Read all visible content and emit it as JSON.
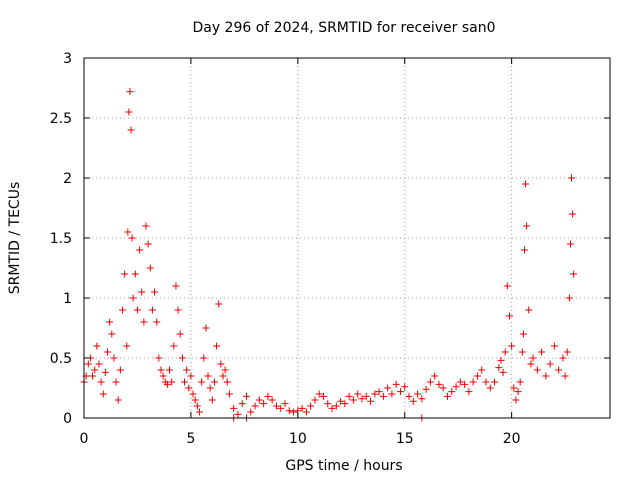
{
  "chart_data": {
    "type": "scatter",
    "title": "Day 296 of 2024, SRMTID for receiver san0",
    "xlabel": "GPS time / hours",
    "ylabel": "SRMTID / TECUs",
    "xlim": [
      0,
      24.6
    ],
    "ylim": [
      0,
      3
    ],
    "x_ticks": [
      0,
      5,
      10,
      15,
      20
    ],
    "x_tick_labels": [
      "0",
      "5",
      "10",
      "15",
      "20"
    ],
    "y_ticks": [
      0,
      0.5,
      1,
      1.5,
      2,
      2.5,
      3
    ],
    "y_tick_labels": [
      "0",
      "0.5",
      "1",
      "1.5",
      "2",
      "2.5",
      "3"
    ],
    "grid": true,
    "marker": "plus",
    "colors": {
      "points": "#ee0000",
      "grid": "#a0a0a0",
      "axis": "#000000"
    },
    "series": [
      {
        "name": "SRMTID",
        "x": [
          0.0,
          0.1,
          0.2,
          0.3,
          0.4,
          0.5,
          0.6,
          0.7,
          0.8,
          0.9,
          1.0,
          1.1,
          1.2,
          1.3,
          1.4,
          1.5,
          1.6,
          1.7,
          1.8,
          1.9,
          2.0,
          2.05,
          2.1,
          2.15,
          2.2,
          2.25,
          2.3,
          2.4,
          2.5,
          2.6,
          2.7,
          2.8,
          2.9,
          3.0,
          3.1,
          3.2,
          3.3,
          3.4,
          3.5,
          3.6,
          3.7,
          3.8,
          3.9,
          4.0,
          4.1,
          4.2,
          4.3,
          4.4,
          4.5,
          4.6,
          4.7,
          4.8,
          4.9,
          5.0,
          5.1,
          5.2,
          5.3,
          5.4,
          5.5,
          5.6,
          5.7,
          5.8,
          5.9,
          6.0,
          6.1,
          6.2,
          6.3,
          6.4,
          6.5,
          6.6,
          6.7,
          6.8,
          7.0,
          7.2,
          7.4,
          7.6,
          7.8,
          8.0,
          8.2,
          8.4,
          8.6,
          8.8,
          9.0,
          9.2,
          9.4,
          9.6,
          9.8,
          10.0,
          10.2,
          10.4,
          10.6,
          10.8,
          11.0,
          11.2,
          11.4,
          11.6,
          11.8,
          12.0,
          12.2,
          12.4,
          12.6,
          12.8,
          13.0,
          13.2,
          13.4,
          13.6,
          13.8,
          14.0,
          14.2,
          14.4,
          14.6,
          14.8,
          15.0,
          15.2,
          15.4,
          15.6,
          15.8,
          16.0,
          16.2,
          16.4,
          16.6,
          16.8,
          17.0,
          17.2,
          17.4,
          17.6,
          17.8,
          18.0,
          18.2,
          18.4,
          18.6,
          18.8,
          19.0,
          19.2,
          19.4,
          19.5,
          19.6,
          19.7,
          19.8,
          19.9,
          20.0,
          20.1,
          20.2,
          20.3,
          20.4,
          20.5,
          20.55,
          20.6,
          20.65,
          20.7,
          20.8,
          20.9,
          21.0,
          21.2,
          21.4,
          21.6,
          21.8,
          22.0,
          22.2,
          22.4,
          22.5,
          22.6,
          22.7,
          22.75,
          22.8,
          22.85,
          22.9,
          7.0,
          7.6,
          15.8
        ],
        "y": [
          0.3,
          0.35,
          0.45,
          0.5,
          0.35,
          0.4,
          0.6,
          0.45,
          0.3,
          0.2,
          0.38,
          0.55,
          0.8,
          0.7,
          0.5,
          0.3,
          0.15,
          0.4,
          0.9,
          1.2,
          0.6,
          1.55,
          2.55,
          2.72,
          2.4,
          1.5,
          1.0,
          1.2,
          0.9,
          1.4,
          1.05,
          0.8,
          1.6,
          1.45,
          1.25,
          0.9,
          1.05,
          0.8,
          0.5,
          0.4,
          0.35,
          0.3,
          0.28,
          0.4,
          0.3,
          0.6,
          1.1,
          0.9,
          0.7,
          0.5,
          0.3,
          0.4,
          0.25,
          0.35,
          0.2,
          0.15,
          0.1,
          0.05,
          0.3,
          0.5,
          0.75,
          0.35,
          0.25,
          0.15,
          0.3,
          0.6,
          0.95,
          0.45,
          0.35,
          0.4,
          0.3,
          0.2,
          0.08,
          0.03,
          0.12,
          0.18,
          0.05,
          0.1,
          0.15,
          0.12,
          0.18,
          0.15,
          0.1,
          0.08,
          0.12,
          0.06,
          0.05,
          0.06,
          0.08,
          0.05,
          0.1,
          0.15,
          0.2,
          0.18,
          0.12,
          0.08,
          0.1,
          0.14,
          0.12,
          0.18,
          0.15,
          0.2,
          0.16,
          0.18,
          0.14,
          0.2,
          0.22,
          0.18,
          0.25,
          0.2,
          0.28,
          0.22,
          0.26,
          0.18,
          0.14,
          0.2,
          0.16,
          0.24,
          0.3,
          0.35,
          0.28,
          0.25,
          0.18,
          0.22,
          0.26,
          0.3,
          0.28,
          0.22,
          0.3,
          0.35,
          0.4,
          0.3,
          0.25,
          0.3,
          0.42,
          0.48,
          0.38,
          0.55,
          1.1,
          0.85,
          0.6,
          0.25,
          0.15,
          0.22,
          0.3,
          0.55,
          0.7,
          1.4,
          1.95,
          1.6,
          0.9,
          0.45,
          0.5,
          0.4,
          0.55,
          0.35,
          0.45,
          0.6,
          0.4,
          0.5,
          0.35,
          0.55,
          1.0,
          1.45,
          2.0,
          1.7,
          1.2,
          0.0,
          0.0,
          0.0
        ]
      }
    ]
  }
}
